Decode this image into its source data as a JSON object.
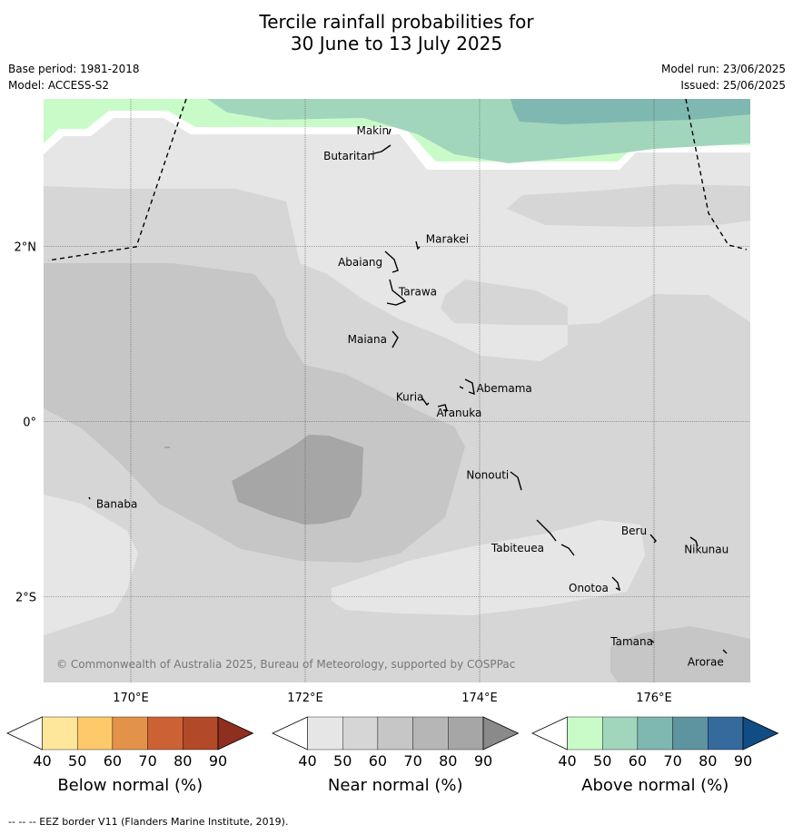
{
  "title_line1": "Tercile rainfall probabilities for",
  "title_line2": "30 June to 13 July 2025",
  "base_period": "Base period: 1981-2018",
  "model": "Model: ACCESS-S2",
  "model_run": "Model run: 23/06/2025",
  "issued": "Issued: 25/06/2025",
  "x_ticks": [
    {
      "lon": 170,
      "label": "170°E"
    },
    {
      "lon": 172,
      "label": "172°E"
    },
    {
      "lon": 174,
      "label": "174°E"
    },
    {
      "lon": 176,
      "label": "176°E"
    }
  ],
  "y_ticks": [
    {
      "lat": 2,
      "label": "2°N"
    },
    {
      "lat": 0,
      "label": "0°"
    },
    {
      "lat": -2,
      "label": "2°S"
    }
  ],
  "places": [
    {
      "name": "Makin",
      "lon": 172.98,
      "lat": 3.33
    },
    {
      "name": "Butaritari",
      "lon": 172.85,
      "lat": 3.06
    },
    {
      "name": "Marakei",
      "lon": 173.3,
      "lat": 2.0
    },
    {
      "name": "Abaiang",
      "lon": 172.96,
      "lat": 1.84
    },
    {
      "name": "Tarawa",
      "lon": 173.03,
      "lat": 1.38
    },
    {
      "name": "Maiana",
      "lon": 173.0,
      "lat": 0.93
    },
    {
      "name": "Abemama",
      "lon": 173.88,
      "lat": 0.38
    },
    {
      "name": "Kuria",
      "lon": 173.4,
      "lat": 0.22
    },
    {
      "name": "Aranuka",
      "lon": 173.61,
      "lat": 0.16
    },
    {
      "name": "Nonouti",
      "lon": 174.43,
      "lat": -0.63
    },
    {
      "name": "Banaba",
      "lon": 169.54,
      "lat": -0.88
    },
    {
      "name": "Tabiteuea",
      "lon": 174.78,
      "lat": -1.3
    },
    {
      "name": "Beru",
      "lon": 175.98,
      "lat": -1.33
    },
    {
      "name": "Nikunau",
      "lon": 176.45,
      "lat": -1.36
    },
    {
      "name": "Onotoa",
      "lon": 175.55,
      "lat": -1.82
    },
    {
      "name": "Tamana",
      "lon": 176.0,
      "lat": -2.5
    },
    {
      "name": "Arorae",
      "lon": 176.82,
      "lat": -2.64
    }
  ],
  "copyright": "© Commonwealth of Australia 2025, Bureau of Meteorology, supported by COSPPac",
  "colorbars": [
    {
      "label": "Below normal (%)",
      "ticks": [
        "40",
        "50",
        "60",
        "70",
        "80",
        "90"
      ],
      "colors": [
        "#ffffff",
        "#fee79a",
        "#fdc96a",
        "#e39349",
        "#cc6134",
        "#b24928",
        "#8e2f1f"
      ]
    },
    {
      "label": "Near normal (%)",
      "ticks": [
        "40",
        "50",
        "60",
        "70",
        "80",
        "90"
      ],
      "colors": [
        "#ffffff",
        "#e6e6e6",
        "#d6d6d6",
        "#c6c6c6",
        "#b6b6b6",
        "#a6a6a6",
        "#8a8a8a"
      ]
    },
    {
      "label": "Above normal (%)",
      "ticks": [
        "40",
        "50",
        "60",
        "70",
        "80",
        "90"
      ],
      "colors": [
        "#ffffff",
        "#c9fbc9",
        "#a2d6bc",
        "#7fb8b0",
        "#5e93a0",
        "#356a9c",
        "#124c84"
      ]
    }
  ],
  "footnote": "--  --  -- EEZ border V11 (Flanders Marine Institute, 2019)."
}
